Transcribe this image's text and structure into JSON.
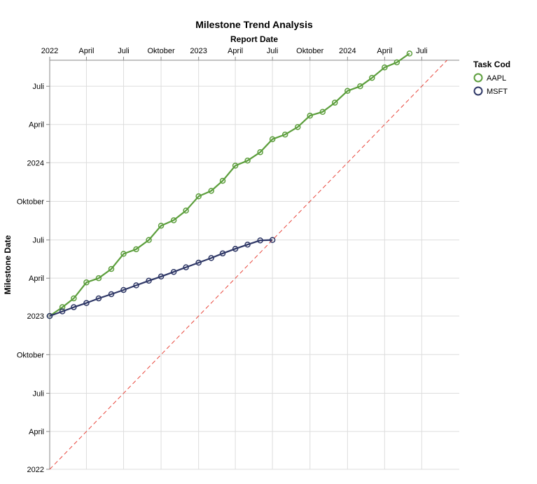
{
  "chart_data": {
    "type": "line",
    "title": "Milestone Trend Analysis",
    "xlabel": "Report Date",
    "ylabel": "Milestone Date",
    "x_axis_position": "top",
    "xlim": [
      "2022-01-01",
      "2024-10-01"
    ],
    "ylim": [
      "2022-01-01",
      "2024-09-01"
    ],
    "x_ticks": [
      {
        "date": "2022-01-01",
        "label": "2022"
      },
      {
        "date": "2022-04-01",
        "label": "April"
      },
      {
        "date": "2022-07-01",
        "label": "Juli"
      },
      {
        "date": "2022-10-01",
        "label": "Oktober"
      },
      {
        "date": "2023-01-01",
        "label": "2023"
      },
      {
        "date": "2023-04-01",
        "label": "April"
      },
      {
        "date": "2023-07-01",
        "label": "Juli"
      },
      {
        "date": "2023-10-01",
        "label": "Oktober"
      },
      {
        "date": "2024-01-01",
        "label": "2024"
      },
      {
        "date": "2024-04-01",
        "label": "April"
      },
      {
        "date": "2024-07-01",
        "label": "Juli"
      }
    ],
    "y_ticks": [
      {
        "date": "2022-01-01",
        "label": "2022"
      },
      {
        "date": "2022-04-01",
        "label": "April"
      },
      {
        "date": "2022-07-01",
        "label": "Juli"
      },
      {
        "date": "2022-10-01",
        "label": "Oktober"
      },
      {
        "date": "2023-01-01",
        "label": "2023"
      },
      {
        "date": "2023-04-01",
        "label": "April"
      },
      {
        "date": "2023-07-01",
        "label": "Juli"
      },
      {
        "date": "2023-10-01",
        "label": "Oktober"
      },
      {
        "date": "2024-01-01",
        "label": "2024"
      },
      {
        "date": "2024-04-01",
        "label": "April"
      },
      {
        "date": "2024-07-01",
        "label": "Juli"
      }
    ],
    "grid": true,
    "reference_line": {
      "type": "diagonal",
      "style": "dashed",
      "color": "#e8463c"
    },
    "legend": {
      "title": "Task Cod",
      "position": "top-right"
    },
    "series": [
      {
        "name": "AAPL",
        "color": "#5c9e3c",
        "points": [
          {
            "x": "2022-01-01",
            "y": "2023-01-01"
          },
          {
            "x": "2022-02-01",
            "y": "2023-01-22"
          },
          {
            "x": "2022-03-01",
            "y": "2023-02-12"
          },
          {
            "x": "2022-04-01",
            "y": "2023-03-22"
          },
          {
            "x": "2022-05-01",
            "y": "2023-04-01"
          },
          {
            "x": "2022-06-01",
            "y": "2023-04-23"
          },
          {
            "x": "2022-07-01",
            "y": "2023-05-29"
          },
          {
            "x": "2022-08-01",
            "y": "2023-06-09"
          },
          {
            "x": "2022-09-01",
            "y": "2023-07-01"
          },
          {
            "x": "2022-10-01",
            "y": "2023-08-04"
          },
          {
            "x": "2022-11-01",
            "y": "2023-08-17"
          },
          {
            "x": "2022-12-01",
            "y": "2023-09-09"
          },
          {
            "x": "2023-01-01",
            "y": "2023-10-13"
          },
          {
            "x": "2023-02-01",
            "y": "2023-10-26"
          },
          {
            "x": "2023-03-01",
            "y": "2023-11-19"
          },
          {
            "x": "2023-04-01",
            "y": "2023-12-25"
          },
          {
            "x": "2023-05-01",
            "y": "2024-01-06"
          },
          {
            "x": "2023-06-01",
            "y": "2024-01-26"
          },
          {
            "x": "2023-07-01",
            "y": "2024-02-26"
          },
          {
            "x": "2023-08-01",
            "y": "2024-03-08"
          },
          {
            "x": "2023-09-01",
            "y": "2024-03-26"
          },
          {
            "x": "2023-10-01",
            "y": "2024-04-22"
          },
          {
            "x": "2023-11-01",
            "y": "2024-05-01"
          },
          {
            "x": "2023-12-01",
            "y": "2024-05-23"
          },
          {
            "x": "2024-01-01",
            "y": "2024-06-20"
          },
          {
            "x": "2024-02-01",
            "y": "2024-07-01"
          },
          {
            "x": "2024-03-01",
            "y": "2024-07-21"
          },
          {
            "x": "2024-04-01",
            "y": "2024-08-15"
          },
          {
            "x": "2024-05-01",
            "y": "2024-08-27"
          },
          {
            "x": "2024-06-01",
            "y": "2024-09-17"
          }
        ]
      },
      {
        "name": "MSFT",
        "color": "#2e3766",
        "points": [
          {
            "x": "2022-01-01",
            "y": "2023-01-01"
          },
          {
            "x": "2022-02-01",
            "y": "2023-01-12"
          },
          {
            "x": "2022-03-01",
            "y": "2023-01-22"
          },
          {
            "x": "2022-04-01",
            "y": "2023-02-01"
          },
          {
            "x": "2022-05-01",
            "y": "2023-02-12"
          },
          {
            "x": "2022-06-01",
            "y": "2023-02-22"
          },
          {
            "x": "2022-07-01",
            "y": "2023-03-04"
          },
          {
            "x": "2022-08-01",
            "y": "2023-03-15"
          },
          {
            "x": "2022-09-01",
            "y": "2023-03-26"
          },
          {
            "x": "2022-10-01",
            "y": "2023-04-05"
          },
          {
            "x": "2022-11-01",
            "y": "2023-04-16"
          },
          {
            "x": "2022-12-01",
            "y": "2023-04-27"
          },
          {
            "x": "2023-01-01",
            "y": "2023-05-08"
          },
          {
            "x": "2023-02-01",
            "y": "2023-05-19"
          },
          {
            "x": "2023-03-01",
            "y": "2023-05-30"
          },
          {
            "x": "2023-04-01",
            "y": "2023-06-10"
          },
          {
            "x": "2023-05-01",
            "y": "2023-06-20"
          },
          {
            "x": "2023-06-01",
            "y": "2023-06-30"
          },
          {
            "x": "2023-07-01",
            "y": "2023-07-01"
          }
        ]
      }
    ]
  }
}
